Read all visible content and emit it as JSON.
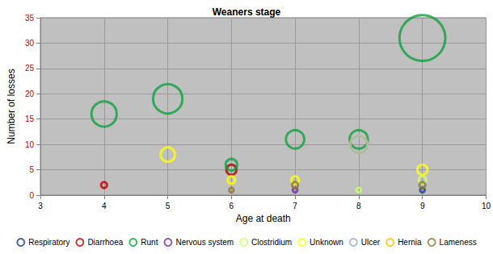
{
  "chart_data": {
    "type": "bubble",
    "title": "Weaners stage",
    "x_label": "Age at death",
    "y_label": "Number of losses",
    "xlim": [
      3,
      10
    ],
    "xticks": [
      3,
      4,
      5,
      6,
      7,
      8,
      9,
      10
    ],
    "ylim": [
      0,
      35
    ],
    "yticks": [
      0,
      5,
      10,
      15,
      20,
      25,
      30,
      35
    ],
    "grid": true,
    "legend": "bottom",
    "marker": "circle",
    "series": [
      {
        "name": "Respiratory",
        "color": "#1f3f8f",
        "x": [
          9
        ],
        "values": [
          1
        ]
      },
      {
        "name": "Diarrhoea",
        "color": "#c00000",
        "x": [
          4,
          6
        ],
        "values": [
          2,
          5
        ]
      },
      {
        "name": "Runt",
        "color": "#10a040",
        "x": [
          4,
          5,
          6,
          7,
          8,
          9
        ],
        "values": [
          16,
          19,
          6,
          11,
          11,
          31
        ]
      },
      {
        "name": "Nervous system",
        "color": "#7030a0",
        "x": [
          7
        ],
        "values": [
          1
        ]
      },
      {
        "name": "Clostridium",
        "color": "#ccff66",
        "x": [
          8,
          9
        ],
        "values": [
          1,
          3
        ]
      },
      {
        "name": "Unknown",
        "color": "#ffff00",
        "x": [
          5,
          6,
          7,
          8,
          9
        ],
        "values": [
          8,
          3,
          3,
          10,
          5
        ]
      },
      {
        "name": "Ulcer",
        "color": "#99aacc",
        "x": [
          8
        ],
        "values": [
          10
        ]
      },
      {
        "name": "Hernia",
        "color": "#ffc000",
        "x": [],
        "values": []
      },
      {
        "name": "Lameness",
        "color": "#8c7a3c",
        "x": [
          6,
          7,
          9
        ],
        "values": [
          1,
          2,
          2
        ]
      }
    ]
  }
}
